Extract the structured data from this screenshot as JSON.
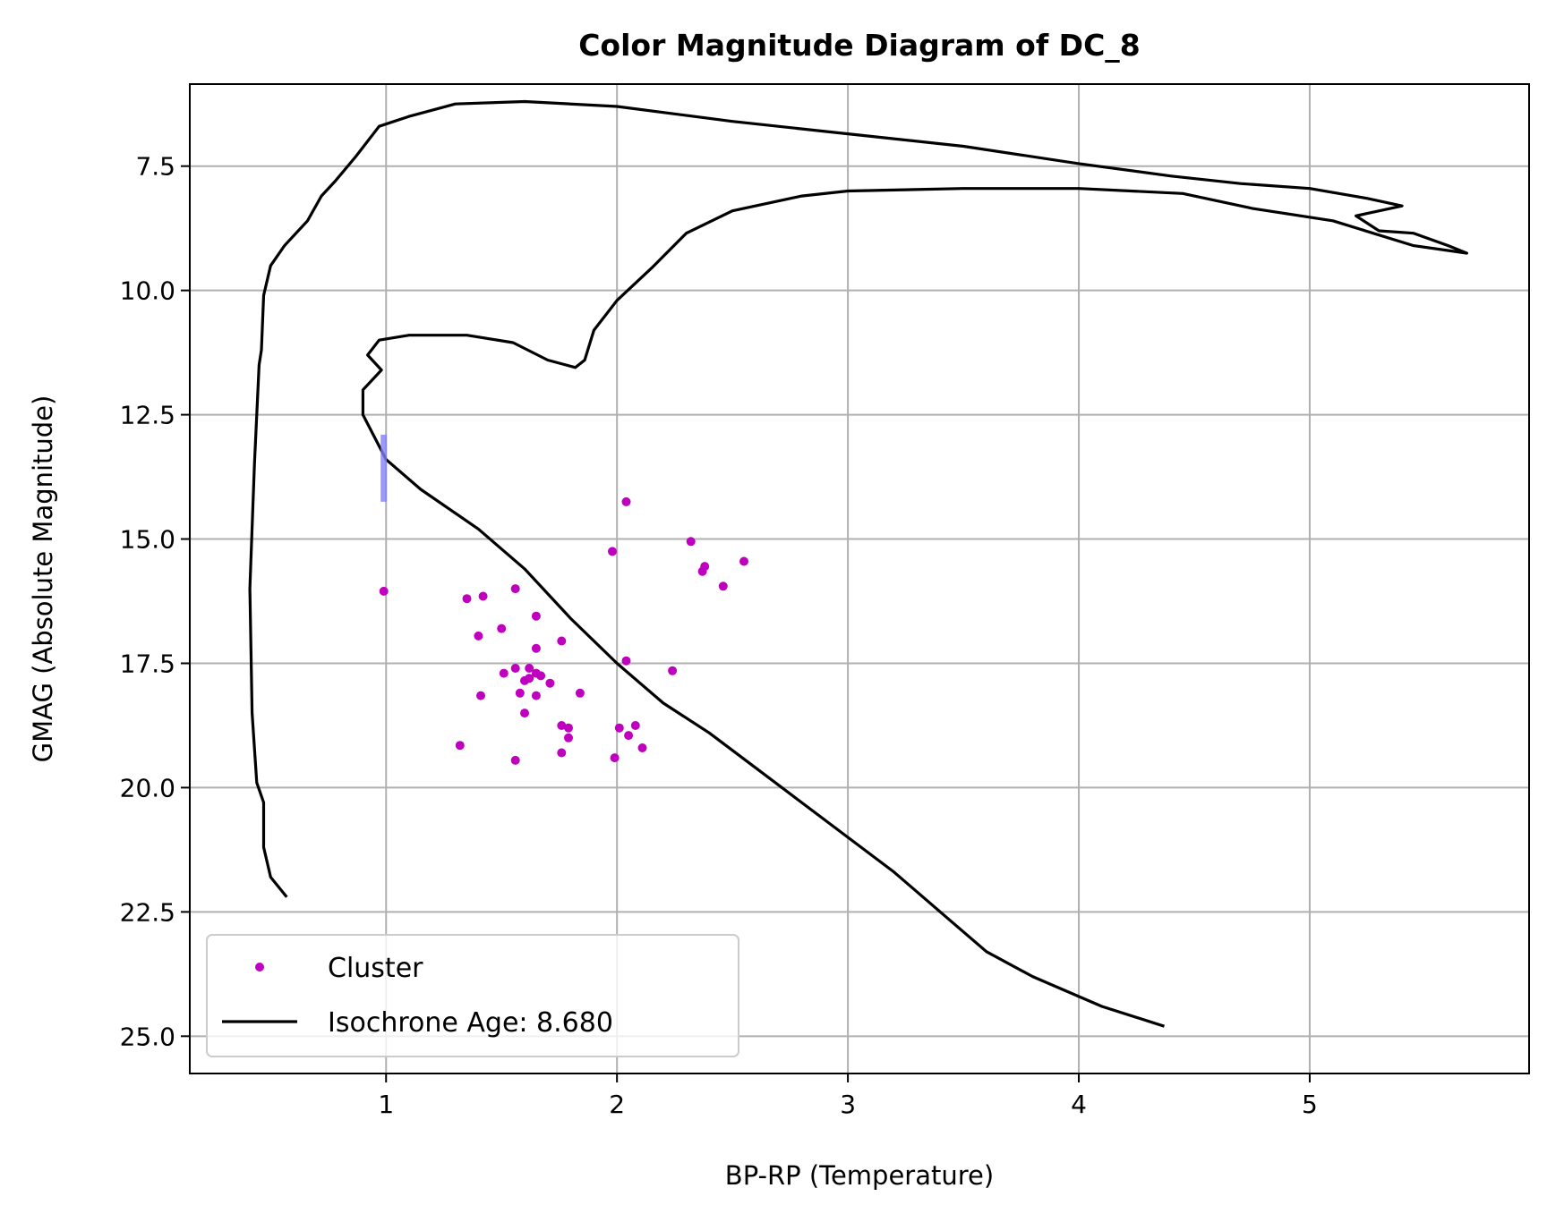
{
  "chart_data": {
    "type": "scatter",
    "title": "Color Magnitude Diagram of DC_8",
    "xlabel": "BP-RP (Temperature)",
    "ylabel": "GMAG (Absolute Magnitude)",
    "xlim": [
      0.15,
      5.95
    ],
    "ylim": [
      25.75,
      5.85
    ],
    "y_inverted": true,
    "grid": true,
    "legend_position": "lower-left",
    "x_ticks": [
      {
        "value": 1,
        "label": "1"
      },
      {
        "value": 2,
        "label": "2"
      },
      {
        "value": 3,
        "label": "3"
      },
      {
        "value": 4,
        "label": "4"
      },
      {
        "value": 5,
        "label": "5"
      }
    ],
    "y_ticks": [
      {
        "value": 7.5,
        "label": "7.5"
      },
      {
        "value": 10.0,
        "label": "10.0"
      },
      {
        "value": 12.5,
        "label": "12.5"
      },
      {
        "value": 15.0,
        "label": "15.0"
      },
      {
        "value": 17.5,
        "label": "17.5"
      },
      {
        "value": 20.0,
        "label": "20.0"
      },
      {
        "value": 22.5,
        "label": "22.5"
      },
      {
        "value": 25.0,
        "label": "25.0"
      }
    ],
    "series": [
      {
        "name": "Cluster",
        "kind": "scatter",
        "color": "#bf00bf",
        "points": [
          [
            2.04,
            14.25
          ],
          [
            2.32,
            15.05
          ],
          [
            1.98,
            15.25
          ],
          [
            2.55,
            15.45
          ],
          [
            2.38,
            15.55
          ],
          [
            2.37,
            15.65
          ],
          [
            2.46,
            15.95
          ],
          [
            0.99,
            16.05
          ],
          [
            1.56,
            16.0
          ],
          [
            1.42,
            16.15
          ],
          [
            1.35,
            16.2
          ],
          [
            1.65,
            16.55
          ],
          [
            1.5,
            16.8
          ],
          [
            1.4,
            16.95
          ],
          [
            1.76,
            17.05
          ],
          [
            1.65,
            17.2
          ],
          [
            2.04,
            17.45
          ],
          [
            1.62,
            17.6
          ],
          [
            1.56,
            17.6
          ],
          [
            2.24,
            17.65
          ],
          [
            1.51,
            17.7
          ],
          [
            1.65,
            17.7
          ],
          [
            1.67,
            17.75
          ],
          [
            1.62,
            17.8
          ],
          [
            1.6,
            17.85
          ],
          [
            1.71,
            17.9
          ],
          [
            1.58,
            18.1
          ],
          [
            1.84,
            18.1
          ],
          [
            1.41,
            18.15
          ],
          [
            1.65,
            18.15
          ],
          [
            1.6,
            18.5
          ],
          [
            1.76,
            18.75
          ],
          [
            1.79,
            18.8
          ],
          [
            2.01,
            18.8
          ],
          [
            2.08,
            18.75
          ],
          [
            2.05,
            18.95
          ],
          [
            1.79,
            19.0
          ],
          [
            1.32,
            19.15
          ],
          [
            2.11,
            19.2
          ],
          [
            1.76,
            19.3
          ],
          [
            1.99,
            19.4
          ],
          [
            1.56,
            19.45
          ]
        ]
      },
      {
        "name": "Isochrone Age: 8.680",
        "kind": "line",
        "color": "#000000",
        "points": [
          [
            0.57,
            22.2
          ],
          [
            0.5,
            21.8
          ],
          [
            0.47,
            21.2
          ],
          [
            0.47,
            20.3
          ],
          [
            0.44,
            19.9
          ],
          [
            0.42,
            18.5
          ],
          [
            0.41,
            16.0
          ],
          [
            0.43,
            13.5
          ],
          [
            0.45,
            11.5
          ],
          [
            0.46,
            11.2
          ],
          [
            0.47,
            10.1
          ],
          [
            0.5,
            9.5
          ],
          [
            0.56,
            9.1
          ],
          [
            0.66,
            8.6
          ],
          [
            0.72,
            8.1
          ],
          [
            0.78,
            7.8
          ],
          [
            0.87,
            7.3
          ],
          [
            0.97,
            6.7
          ],
          [
            1.1,
            6.5
          ],
          [
            1.3,
            6.25
          ],
          [
            1.6,
            6.2
          ],
          [
            2.0,
            6.3
          ],
          [
            2.5,
            6.6
          ],
          [
            3.0,
            6.85
          ],
          [
            3.5,
            7.1
          ],
          [
            4.0,
            7.45
          ],
          [
            4.4,
            7.7
          ],
          [
            4.7,
            7.85
          ],
          [
            5.0,
            7.95
          ],
          [
            5.25,
            8.15
          ],
          [
            5.4,
            8.3
          ],
          [
            5.2,
            8.5
          ],
          [
            5.3,
            8.8
          ],
          [
            5.45,
            8.85
          ],
          [
            5.6,
            9.1
          ],
          [
            5.68,
            9.25
          ],
          [
            5.45,
            9.1
          ],
          [
            5.1,
            8.6
          ],
          [
            4.75,
            8.35
          ],
          [
            4.45,
            8.05
          ],
          [
            4.0,
            7.95
          ],
          [
            3.5,
            7.95
          ],
          [
            3.0,
            8.0
          ],
          [
            2.8,
            8.1
          ],
          [
            2.5,
            8.4
          ],
          [
            2.3,
            8.85
          ],
          [
            2.15,
            9.55
          ],
          [
            2.0,
            10.2
          ],
          [
            1.9,
            10.8
          ],
          [
            1.86,
            11.4
          ],
          [
            1.82,
            11.55
          ],
          [
            1.7,
            11.4
          ],
          [
            1.55,
            11.05
          ],
          [
            1.35,
            10.9
          ],
          [
            1.1,
            10.9
          ],
          [
            0.97,
            11.0
          ],
          [
            0.92,
            11.3
          ],
          [
            0.98,
            11.6
          ],
          [
            0.9,
            12.0
          ],
          [
            0.9,
            12.5
          ],
          [
            1.0,
            13.4
          ],
          [
            1.15,
            14.0
          ],
          [
            1.4,
            14.8
          ],
          [
            1.6,
            15.6
          ],
          [
            1.8,
            16.6
          ],
          [
            2.0,
            17.5
          ],
          [
            2.2,
            18.3
          ],
          [
            2.4,
            18.9
          ],
          [
            2.6,
            19.6
          ],
          [
            2.8,
            20.3
          ],
          [
            3.0,
            21.0
          ],
          [
            3.2,
            21.7
          ],
          [
            3.4,
            22.5
          ],
          [
            3.6,
            23.3
          ],
          [
            3.8,
            23.8
          ],
          [
            4.1,
            24.4
          ],
          [
            4.37,
            24.8
          ]
        ]
      }
    ],
    "error_bar": {
      "x": 0.99,
      "y_low": 12.9,
      "y_high": 14.25,
      "color": "#8080ff"
    },
    "legend": [
      {
        "label": "Cluster",
        "marker": "dot",
        "color": "#bf00bf"
      },
      {
        "label": "Isochrone Age: 8.680",
        "marker": "line",
        "color": "#000000"
      }
    ]
  }
}
